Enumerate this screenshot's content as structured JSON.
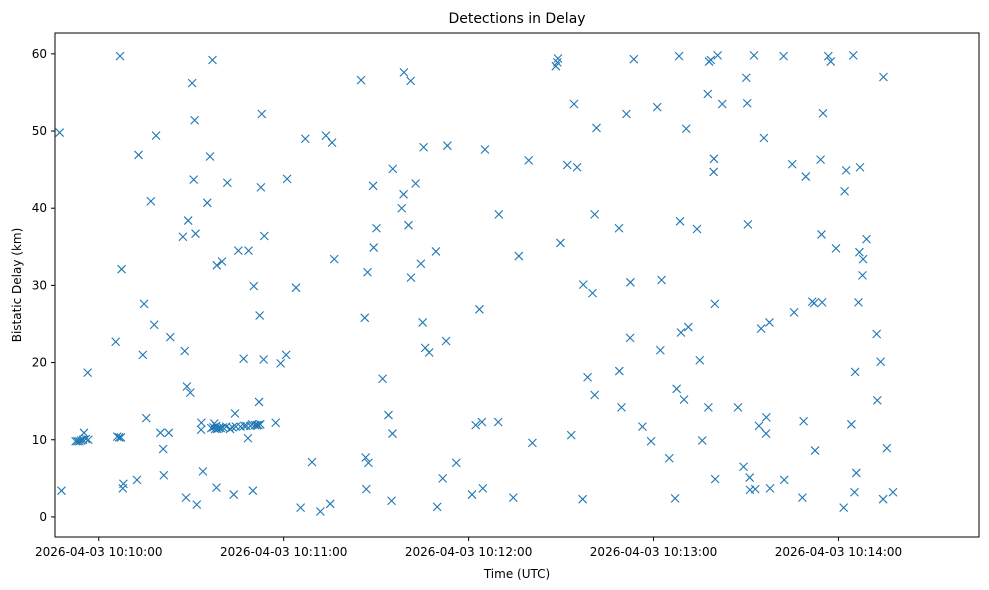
{
  "chart_data": {
    "type": "scatter",
    "title": "Detections in Delay",
    "xlabel": "Time (UTC)",
    "ylabel": "Bistatic Delay (km)",
    "marker": "x",
    "color": "#1f77b4",
    "grid": false,
    "x_ticks": [
      "2026-04-03 10:10:00",
      "2026-04-03 10:11:00",
      "2026-04-03 10:12:00",
      "2026-04-03 10:13:00",
      "2026-04-03 10:14:00"
    ],
    "y_ticks": [
      "0",
      "10",
      "20",
      "30",
      "40",
      "50",
      "60"
    ],
    "xlim": [
      "2026-04-03 10:09:45.8",
      "2026-04-03 10:14:45.6"
    ],
    "ylim": [
      -2.6,
      62.7
    ],
    "points": [
      [
        "2026-04-03 10:09:47.3",
        49.8
      ],
      [
        "2026-04-03 10:09:47.9",
        3.4
      ],
      [
        "2026-04-03 10:09:52.5",
        9.8
      ],
      [
        "2026-04-03 10:09:53.1",
        9.8
      ],
      [
        "2026-04-03 10:09:53.7",
        9.8
      ],
      [
        "2026-04-03 10:09:54.3",
        9.9
      ],
      [
        "2026-04-03 10:09:54.9",
        10.0
      ],
      [
        "2026-04-03 10:09:55.2",
        10.9
      ],
      [
        "2026-04-03 10:09:55.8",
        10.1
      ],
      [
        "2026-04-03 10:09:56.4",
        18.7
      ],
      [
        "2026-04-03 10:09:56.6",
        10.0
      ],
      [
        "2026-04-03 10:10:05.5",
        22.7
      ],
      [
        "2026-04-03 10:10:06.0",
        10.4
      ],
      [
        "2026-04-03 10:10:06.6",
        10.3
      ],
      [
        "2026-04-03 10:10:06.9",
        59.7
      ],
      [
        "2026-04-03 10:10:07.2",
        10.3
      ],
      [
        "2026-04-03 10:10:07.4",
        32.1
      ],
      [
        "2026-04-03 10:10:07.8",
        3.7
      ],
      [
        "2026-04-03 10:10:08.0",
        4.3
      ],
      [
        "2026-04-03 10:10:12.4",
        4.8
      ],
      [
        "2026-04-03 10:10:12.9",
        46.9
      ],
      [
        "2026-04-03 10:10:14.3",
        21.0
      ],
      [
        "2026-04-03 10:10:14.7",
        27.6
      ],
      [
        "2026-04-03 10:10:15.4",
        12.8
      ],
      [
        "2026-04-03 10:10:16.9",
        40.9
      ],
      [
        "2026-04-03 10:10:18.0",
        24.9
      ],
      [
        "2026-04-03 10:10:18.6",
        49.4
      ],
      [
        "2026-04-03 10:10:20.0",
        10.9
      ],
      [
        "2026-04-03 10:10:20.9",
        8.8
      ],
      [
        "2026-04-03 10:10:21.1",
        5.4
      ],
      [
        "2026-04-03 10:10:22.7",
        10.9
      ],
      [
        "2026-04-03 10:10:23.2",
        23.3
      ],
      [
        "2026-04-03 10:10:27.3",
        36.3
      ],
      [
        "2026-04-03 10:10:27.9",
        21.5
      ],
      [
        "2026-04-03 10:10:28.3",
        2.5
      ],
      [
        "2026-04-03 10:10:28.6",
        16.9
      ],
      [
        "2026-04-03 10:10:29.0",
        38.4
      ],
      [
        "2026-04-03 10:10:29.7",
        16.1
      ],
      [
        "2026-04-03 10:10:30.3",
        56.2
      ],
      [
        "2026-04-03 10:10:30.8",
        43.7
      ],
      [
        "2026-04-03 10:10:31.1",
        51.4
      ],
      [
        "2026-04-03 10:10:31.4",
        36.7
      ],
      [
        "2026-04-03 10:10:31.8",
        1.6
      ],
      [
        "2026-04-03 10:10:33.2",
        11.3
      ],
      [
        "2026-04-03 10:10:33.3",
        12.2
      ],
      [
        "2026-04-03 10:10:33.8",
        5.9
      ],
      [
        "2026-04-03 10:10:35.2",
        40.7
      ],
      [
        "2026-04-03 10:10:36.1",
        46.7
      ],
      [
        "2026-04-03 10:10:36.5",
        11.5
      ],
      [
        "2026-04-03 10:10:36.9",
        59.2
      ],
      [
        "2026-04-03 10:10:37.2",
        11.6
      ],
      [
        "2026-04-03 10:10:37.5",
        12.1
      ],
      [
        "2026-04-03 10:10:37.8",
        11.4
      ],
      [
        "2026-04-03 10:10:38.1",
        11.8
      ],
      [
        "2026-04-03 10:10:38.2",
        3.8
      ],
      [
        "2026-04-03 10:10:38.3",
        32.6
      ],
      [
        "2026-04-03 10:10:38.5",
        11.4
      ],
      [
        "2026-04-03 10:10:39.0",
        11.5
      ],
      [
        "2026-04-03 10:10:39.6",
        11.5
      ],
      [
        "2026-04-03 10:10:40.0",
        33.1
      ],
      [
        "2026-04-03 10:10:40.3",
        11.6
      ],
      [
        "2026-04-03 10:10:41.4",
        11.7
      ],
      [
        "2026-04-03 10:10:41.7",
        43.3
      ],
      [
        "2026-04-03 10:10:42.6",
        11.4
      ],
      [
        "2026-04-03 10:10:43.4",
        11.6
      ],
      [
        "2026-04-03 10:10:43.8",
        2.9
      ],
      [
        "2026-04-03 10:10:44.2",
        13.4
      ],
      [
        "2026-04-03 10:10:44.5",
        11.7
      ],
      [
        "2026-04-03 10:10:45.3",
        34.5
      ],
      [
        "2026-04-03 10:10:46.0",
        11.7
      ],
      [
        "2026-04-03 10:10:47.0",
        20.5
      ],
      [
        "2026-04-03 10:10:47.2",
        11.8
      ],
      [
        "2026-04-03 10:10:47.9",
        11.8
      ],
      [
        "2026-04-03 10:10:48.4",
        10.2
      ],
      [
        "2026-04-03 10:10:48.6",
        34.5
      ],
      [
        "2026-04-03 10:10:49.2",
        11.8
      ],
      [
        "2026-04-03 10:10:49.7",
        12.0
      ],
      [
        "2026-04-03 10:10:50.0",
        3.4
      ],
      [
        "2026-04-03 10:10:50.3",
        29.9
      ],
      [
        "2026-04-03 10:10:50.7",
        11.9
      ],
      [
        "2026-04-03 10:10:51.3",
        11.9
      ],
      [
        "2026-04-03 10:10:51.8",
        11.9
      ],
      [
        "2026-04-03 10:10:52.0",
        14.9
      ],
      [
        "2026-04-03 10:10:52.2",
        26.1
      ],
      [
        "2026-04-03 10:10:52.4",
        12.0
      ],
      [
        "2026-04-03 10:10:52.6",
        42.7
      ],
      [
        "2026-04-03 10:10:52.9",
        52.2
      ],
      [
        "2026-04-03 10:10:53.5",
        20.4
      ],
      [
        "2026-04-03 10:10:53.7",
        36.4
      ],
      [
        "2026-04-03 10:10:57.4",
        12.2
      ],
      [
        "2026-04-03 10:10:59.0",
        19.9
      ],
      [
        "2026-04-03 10:11:00.8",
        21.0
      ],
      [
        "2026-04-03 10:11:01.1",
        43.8
      ],
      [
        "2026-04-03 10:11:04.0",
        29.7
      ],
      [
        "2026-04-03 10:11:05.5",
        1.2
      ],
      [
        "2026-04-03 10:11:07.0",
        49.0
      ],
      [
        "2026-04-03 10:11:09.2",
        7.1
      ],
      [
        "2026-04-03 10:11:11.9",
        0.7
      ],
      [
        "2026-04-03 10:11:13.7",
        49.4
      ],
      [
        "2026-04-03 10:11:15.1",
        1.7
      ],
      [
        "2026-04-03 10:11:15.7",
        48.5
      ],
      [
        "2026-04-03 10:11:16.4",
        33.4
      ],
      [
        "2026-04-03 10:11:25.1",
        56.6
      ],
      [
        "2026-04-03 10:11:26.3",
        25.8
      ],
      [
        "2026-04-03 10:11:26.6",
        7.7
      ],
      [
        "2026-04-03 10:11:26.8",
        3.6
      ],
      [
        "2026-04-03 10:11:27.2",
        31.7
      ],
      [
        "2026-04-03 10:11:27.5",
        7.0
      ],
      [
        "2026-04-03 10:11:29.0",
        42.9
      ],
      [
        "2026-04-03 10:11:29.2",
        34.9
      ],
      [
        "2026-04-03 10:11:30.1",
        37.4
      ],
      [
        "2026-04-03 10:11:32.1",
        17.9
      ],
      [
        "2026-04-03 10:11:34.0",
        13.2
      ],
      [
        "2026-04-03 10:11:35.0",
        2.1
      ],
      [
        "2026-04-03 10:11:35.3",
        10.8
      ],
      [
        "2026-04-03 10:11:35.4",
        45.1
      ],
      [
        "2026-04-03 10:11:38.3",
        40.0
      ],
      [
        "2026-04-03 10:11:38.9",
        41.8
      ],
      [
        "2026-04-03 10:11:39.0",
        57.6
      ],
      [
        "2026-04-03 10:11:40.5",
        37.8
      ],
      [
        "2026-04-03 10:11:41.2",
        56.5
      ],
      [
        "2026-04-03 10:11:41.3",
        31.0
      ],
      [
        "2026-04-03 10:11:42.8",
        43.2
      ],
      [
        "2026-04-03 10:11:44.5",
        32.8
      ],
      [
        "2026-04-03 10:11:45.1",
        25.2
      ],
      [
        "2026-04-03 10:11:45.4",
        47.9
      ],
      [
        "2026-04-03 10:11:45.9",
        21.9
      ],
      [
        "2026-04-03 10:11:47.2",
        21.3
      ],
      [
        "2026-04-03 10:11:49.4",
        34.4
      ],
      [
        "2026-04-03 10:11:49.8",
        1.3
      ],
      [
        "2026-04-03 10:11:51.6",
        5.0
      ],
      [
        "2026-04-03 10:11:52.7",
        22.8
      ],
      [
        "2026-04-03 10:11:53.1",
        48.1
      ],
      [
        "2026-04-03 10:11:56.0",
        7.0
      ],
      [
        "2026-04-03 10:12:01.1",
        2.9
      ],
      [
        "2026-04-03 10:12:02.3",
        11.9
      ],
      [
        "2026-04-03 10:12:03.5",
        26.9
      ],
      [
        "2026-04-03 10:12:04.3",
        12.3
      ],
      [
        "2026-04-03 10:12:04.6",
        3.7
      ],
      [
        "2026-04-03 10:12:05.3",
        47.6
      ],
      [
        "2026-04-03 10:12:09.6",
        12.3
      ],
      [
        "2026-04-03 10:12:09.8",
        39.2
      ],
      [
        "2026-04-03 10:12:14.5",
        2.5
      ],
      [
        "2026-04-03 10:12:16.3",
        33.8
      ],
      [
        "2026-04-03 10:12:19.5",
        46.2
      ],
      [
        "2026-04-03 10:12:20.7",
        9.6
      ],
      [
        "2026-04-03 10:12:28.3",
        58.4
      ],
      [
        "2026-04-03 10:12:28.8",
        58.9
      ],
      [
        "2026-04-03 10:12:29.0",
        59.4
      ],
      [
        "2026-04-03 10:12:29.8",
        35.5
      ],
      [
        "2026-04-03 10:12:32.0",
        45.6
      ],
      [
        "2026-04-03 10:12:33.3",
        10.6
      ],
      [
        "2026-04-03 10:12:34.2",
        53.5
      ],
      [
        "2026-04-03 10:12:35.2",
        45.3
      ],
      [
        "2026-04-03 10:12:37.0",
        2.3
      ],
      [
        "2026-04-03 10:12:37.2",
        30.1
      ],
      [
        "2026-04-03 10:12:38.6",
        18.1
      ],
      [
        "2026-04-03 10:12:40.2",
        29.0
      ],
      [
        "2026-04-03 10:12:40.9",
        39.2
      ],
      [
        "2026-04-03 10:12:40.9",
        15.8
      ],
      [
        "2026-04-03 10:12:41.5",
        50.4
      ],
      [
        "2026-04-03 10:12:48.8",
        37.4
      ],
      [
        "2026-04-03 10:12:48.9",
        18.9
      ],
      [
        "2026-04-03 10:12:49.6",
        14.2
      ],
      [
        "2026-04-03 10:12:51.2",
        52.2
      ],
      [
        "2026-04-03 10:12:52.4",
        23.2
      ],
      [
        "2026-04-03 10:12:52.5",
        30.4
      ],
      [
        "2026-04-03 10:12:53.6",
        59.3
      ],
      [
        "2026-04-03 10:12:56.4",
        11.7
      ],
      [
        "2026-04-03 10:12:59.2",
        9.8
      ],
      [
        "2026-04-03 10:13:01.2",
        53.1
      ],
      [
        "2026-04-03 10:13:02.2",
        21.6
      ],
      [
        "2026-04-03 10:13:02.6",
        30.7
      ],
      [
        "2026-04-03 10:13:05.1",
        7.6
      ],
      [
        "2026-04-03 10:13:07.0",
        2.4
      ],
      [
        "2026-04-03 10:13:07.5",
        16.6
      ],
      [
        "2026-04-03 10:13:08.3",
        59.7
      ],
      [
        "2026-04-03 10:13:08.6",
        38.3
      ],
      [
        "2026-04-03 10:13:08.9",
        23.9
      ],
      [
        "2026-04-03 10:13:09.9",
        15.2
      ],
      [
        "2026-04-03 10:13:10.6",
        50.3
      ],
      [
        "2026-04-03 10:13:11.3",
        24.6
      ],
      [
        "2026-04-03 10:13:14.1",
        37.3
      ],
      [
        "2026-04-03 10:13:15.0",
        20.3
      ],
      [
        "2026-04-03 10:13:15.8",
        9.9
      ],
      [
        "2026-04-03 10:13:17.6",
        54.8
      ],
      [
        "2026-04-03 10:13:17.8",
        14.2
      ],
      [
        "2026-04-03 10:13:18.0",
        59.0
      ],
      [
        "2026-04-03 10:13:18.6",
        59.2
      ],
      [
        "2026-04-03 10:13:19.5",
        44.7
      ],
      [
        "2026-04-03 10:13:19.6",
        46.4
      ],
      [
        "2026-04-03 10:13:19.9",
        27.6
      ],
      [
        "2026-04-03 10:13:20.0",
        4.9
      ],
      [
        "2026-04-03 10:13:20.8",
        59.8
      ],
      [
        "2026-04-03 10:13:22.3",
        53.5
      ],
      [
        "2026-04-03 10:13:27.4",
        14.2
      ],
      [
        "2026-04-03 10:13:29.2",
        6.5
      ],
      [
        "2026-04-03 10:13:30.1",
        56.9
      ],
      [
        "2026-04-03 10:13:30.4",
        53.6
      ],
      [
        "2026-04-03 10:13:30.6",
        37.9
      ],
      [
        "2026-04-03 10:13:31.2",
        5.1
      ],
      [
        "2026-04-03 10:13:31.3",
        3.5
      ],
      [
        "2026-04-03 10:13:32.6",
        59.8
      ],
      [
        "2026-04-03 10:13:33.0",
        3.6
      ],
      [
        "2026-04-03 10:13:34.2",
        11.8
      ],
      [
        "2026-04-03 10:13:34.9",
        24.4
      ],
      [
        "2026-04-03 10:13:35.8",
        49.1
      ],
      [
        "2026-04-03 10:13:36.5",
        10.8
      ],
      [
        "2026-04-03 10:13:36.6",
        12.9
      ],
      [
        "2026-04-03 10:13:37.6",
        25.2
      ],
      [
        "2026-04-03 10:13:37.8",
        3.7
      ],
      [
        "2026-04-03 10:13:42.2",
        59.7
      ],
      [
        "2026-04-03 10:13:42.4",
        4.8
      ],
      [
        "2026-04-03 10:13:45.0",
        45.7
      ],
      [
        "2026-04-03 10:13:45.6",
        26.5
      ],
      [
        "2026-04-03 10:13:48.3",
        2.5
      ],
      [
        "2026-04-03 10:13:48.7",
        12.4
      ],
      [
        "2026-04-03 10:13:49.4",
        44.1
      ],
      [
        "2026-04-03 10:13:51.5",
        27.9
      ],
      [
        "2026-04-03 10:13:52.1",
        27.7
      ],
      [
        "2026-04-03 10:13:52.4",
        8.6
      ],
      [
        "2026-04-03 10:13:54.2",
        46.3
      ],
      [
        "2026-04-03 10:13:54.5",
        36.6
      ],
      [
        "2026-04-03 10:13:54.7",
        27.8
      ],
      [
        "2026-04-03 10:13:55.0",
        52.3
      ],
      [
        "2026-04-03 10:13:56.7",
        59.7
      ],
      [
        "2026-04-03 10:13:57.5",
        59.0
      ],
      [
        "2026-04-03 10:13:59.2",
        34.8
      ],
      [
        "2026-04-03 10:14:01.7",
        1.2
      ],
      [
        "2026-04-03 10:14:02.0",
        42.2
      ],
      [
        "2026-04-03 10:14:02.5",
        44.9
      ],
      [
        "2026-04-03 10:14:04.2",
        12.0
      ],
      [
        "2026-04-03 10:14:04.8",
        59.8
      ],
      [
        "2026-04-03 10:14:05.2",
        3.2
      ],
      [
        "2026-04-03 10:14:05.4",
        18.8
      ],
      [
        "2026-04-03 10:14:05.8",
        5.7
      ],
      [
        "2026-04-03 10:14:06.5",
        27.8
      ],
      [
        "2026-04-03 10:14:06.8",
        34.3
      ],
      [
        "2026-04-03 10:14:07.0",
        45.3
      ],
      [
        "2026-04-03 10:14:07.8",
        31.3
      ],
      [
        "2026-04-03 10:14:08.0",
        33.4
      ],
      [
        "2026-04-03 10:14:09.1",
        36.0
      ],
      [
        "2026-04-03 10:14:12.4",
        23.7
      ],
      [
        "2026-04-03 10:14:12.6",
        15.1
      ],
      [
        "2026-04-03 10:14:13.7",
        20.1
      ],
      [
        "2026-04-03 10:14:14.5",
        2.3
      ],
      [
        "2026-04-03 10:14:14.6",
        57.0
      ],
      [
        "2026-04-03 10:14:15.7",
        8.9
      ],
      [
        "2026-04-03 10:14:17.7",
        3.2
      ]
    ]
  }
}
